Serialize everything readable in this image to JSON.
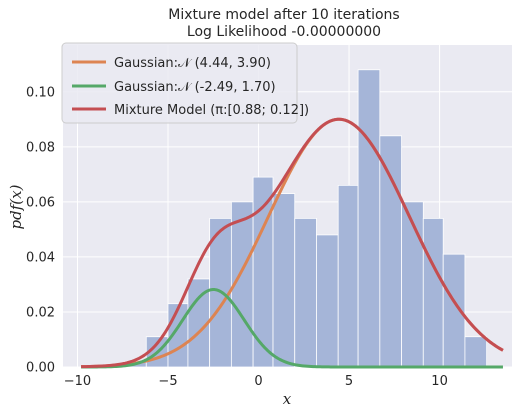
{
  "chart_data": {
    "type": "histogram+line",
    "title": "Mixture model after 10 iterations",
    "subtitle": "Log Likelihood -0.00000000",
    "xlabel": "x",
    "ylabel": "pdf(x)",
    "xlim": [
      -10.8,
      14.0
    ],
    "ylim": [
      0.0,
      0.117
    ],
    "xticks": [
      -10,
      -5,
      0,
      5,
      10
    ],
    "yticks": [
      0.0,
      0.02,
      0.04,
      0.06,
      0.08,
      0.1
    ],
    "ytick_labels": [
      "0.00",
      "0.02",
      "0.04",
      "0.06",
      "0.08",
      "0.10"
    ],
    "grid": true,
    "legend_position": "top-left",
    "histogram": {
      "color": "#a5b5d8",
      "bins": [
        {
          "x0": -8.5,
          "x1": -7.4,
          "value": 0.001
        },
        {
          "x0": -7.4,
          "x1": -6.2,
          "value": 0.002
        },
        {
          "x0": -6.2,
          "x1": -5.0,
          "value": 0.011
        },
        {
          "x0": -5.0,
          "x1": -3.9,
          "value": 0.023
        },
        {
          "x0": -3.9,
          "x1": -2.7,
          "value": 0.032
        },
        {
          "x0": -2.7,
          "x1": -1.5,
          "value": 0.054
        },
        {
          "x0": -1.5,
          "x1": -0.3,
          "value": 0.06
        },
        {
          "x0": -0.3,
          "x1": 0.8,
          "value": 0.069
        },
        {
          "x0": 0.8,
          "x1": 2.0,
          "value": 0.063
        },
        {
          "x0": 2.0,
          "x1": 3.2,
          "value": 0.054
        },
        {
          "x0": 3.2,
          "x1": 4.4,
          "value": 0.048
        },
        {
          "x0": 4.4,
          "x1": 5.5,
          "value": 0.066
        },
        {
          "x0": 5.5,
          "x1": 6.7,
          "value": 0.108
        },
        {
          "x0": 6.7,
          "x1": 7.9,
          "value": 0.084
        },
        {
          "x0": 7.9,
          "x1": 9.1,
          "value": 0.06
        },
        {
          "x0": 9.1,
          "x1": 10.2,
          "value": 0.054
        },
        {
          "x0": 10.2,
          "x1": 11.4,
          "value": 0.041
        },
        {
          "x0": 11.4,
          "x1": 12.6,
          "value": 0.011
        }
      ]
    },
    "series": [
      {
        "name": "Gaussian:𝒩 (4.44, 3.90)",
        "kind": "gaussian",
        "mean": 4.44,
        "sd": 3.9,
        "weight": 0.88,
        "color": "#dd8452"
      },
      {
        "name": "Gaussian:𝒩 (-2.49, 1.70)",
        "kind": "gaussian",
        "mean": -2.49,
        "sd": 1.7,
        "weight": 0.12,
        "color": "#55a868"
      },
      {
        "name": "Mixture Model (π:[0.88; 0.12])",
        "kind": "mixture",
        "color": "#c44e52"
      }
    ],
    "x_range": [
      -9.8,
      13.5
    ]
  }
}
